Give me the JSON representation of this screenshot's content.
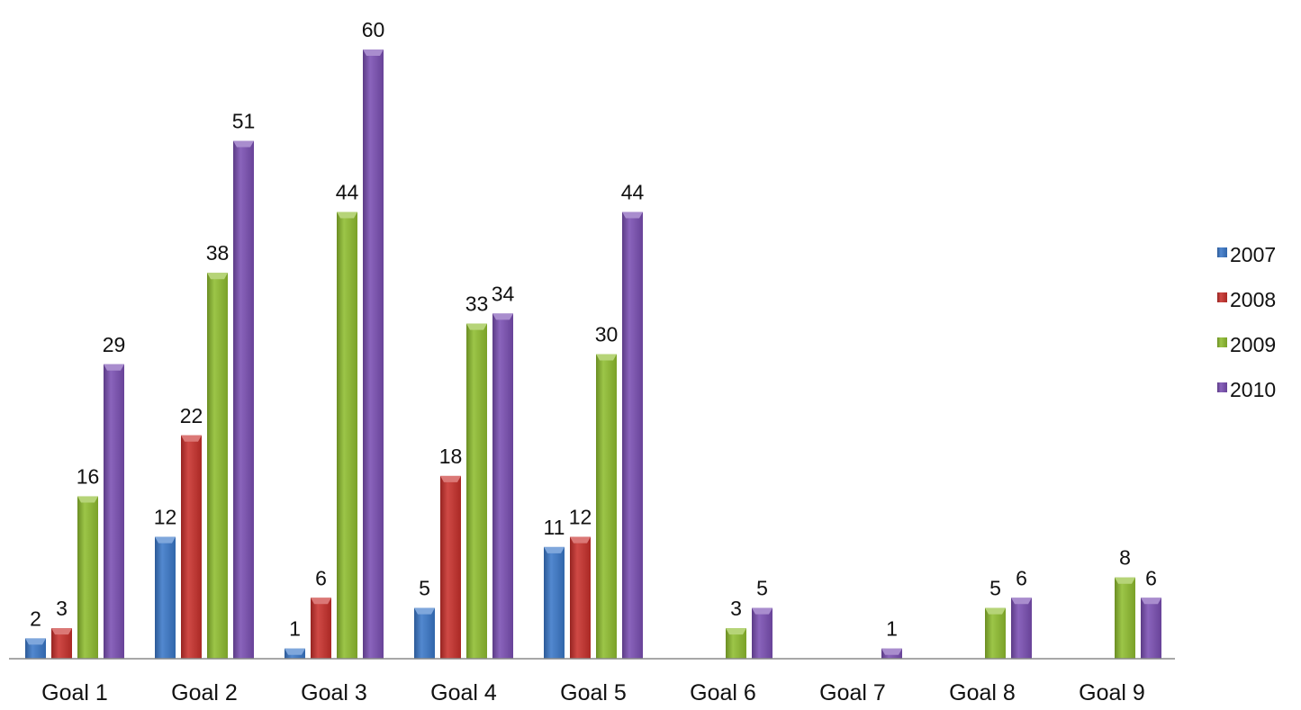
{
  "chart_data": {
    "type": "bar",
    "title": "",
    "xlabel": "",
    "ylabel": "",
    "ylim": [
      0,
      60
    ],
    "grid": false,
    "legend_position": "right",
    "categories": [
      "Goal 1",
      "Goal 2",
      "Goal 3",
      "Goal 4",
      "Goal 5",
      "Goal 6",
      "Goal 7",
      "Goal 8",
      "Goal 9"
    ],
    "series": [
      {
        "name": "2007",
        "color": "#3a78c9",
        "values": [
          2,
          12,
          1,
          5,
          11,
          null,
          null,
          null,
          null
        ]
      },
      {
        "name": "2008",
        "color": "#c8302c",
        "values": [
          3,
          22,
          6,
          18,
          12,
          null,
          null,
          null,
          null
        ]
      },
      {
        "name": "2009",
        "color": "#8fbd2f",
        "values": [
          16,
          38,
          44,
          33,
          30,
          3,
          null,
          5,
          8
        ]
      },
      {
        "name": "2010",
        "color": "#7a4fb3",
        "values": [
          29,
          51,
          60,
          34,
          44,
          5,
          1,
          6,
          6
        ]
      }
    ]
  }
}
